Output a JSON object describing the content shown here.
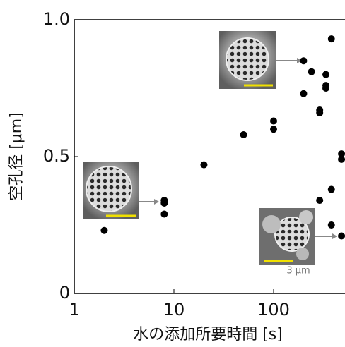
{
  "chart_data": {
    "type": "scatter",
    "x_label": "水の添加所要時間 [s]",
    "y_label": "空孔径 [μm]",
    "x": [
      2,
      8,
      8,
      8,
      20,
      50,
      100,
      100,
      200,
      200,
      240,
      290,
      290,
      290,
      335,
      335,
      335,
      380,
      380,
      380,
      480,
      480,
      480
    ],
    "values": [
      0.23,
      0.34,
      0.33,
      0.29,
      0.47,
      0.58,
      0.63,
      0.6,
      0.85,
      0.73,
      0.81,
      0.67,
      0.66,
      0.34,
      0.8,
      0.76,
      0.75,
      0.93,
      0.38,
      0.25,
      0.51,
      0.49,
      0.21
    ],
    "color": "#000000",
    "log_x": true,
    "xlim": [
      1,
      520
    ],
    "ylim": [
      0,
      1
    ],
    "xticks": [
      1,
      10,
      100
    ],
    "yticks": [
      0,
      0.5,
      {
        "value": 1,
        "label": "1.0"
      }
    ],
    "annotations": [
      "3 μm"
    ]
  }
}
